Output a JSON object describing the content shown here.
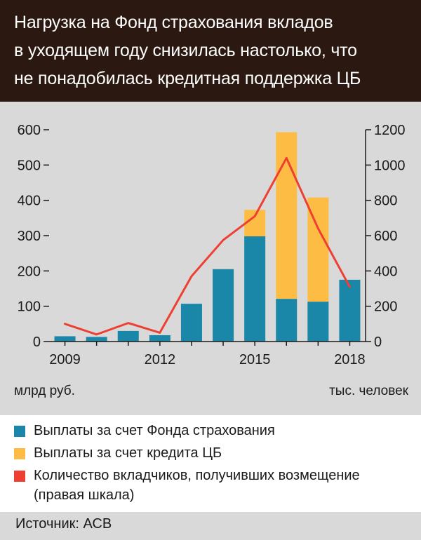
{
  "title": "Нагрузка на Фонд страхования вкладов\nв уходящем году снизилась настолько, что\nне понадобилась кредитная поддержка ЦБ",
  "source": "Источник: АСВ",
  "colors": {
    "header": "#2b1810",
    "fund": "#1a86a8",
    "cb": "#fdbd45",
    "line": "#ee4032",
    "background": "#d9d9d9"
  },
  "legend": [
    {
      "label": "Выплаты за счет Фонда страхования",
      "color": "#1a86a8",
      "shape": "square"
    },
    {
      "label": "Выплаты за счет кредита ЦБ",
      "color": "#fdbd45",
      "shape": "square"
    },
    {
      "label": "Количество вкладчиков, получивших возмещение (правая шкала)",
      "color": "#ee4032",
      "shape": "square"
    }
  ],
  "chart_data": {
    "type": "bar",
    "stacked": true,
    "x": [
      2009,
      2010,
      2011,
      2012,
      2013,
      2014,
      2015,
      2016,
      2017,
      2018
    ],
    "x_tick_labels": [
      "2009",
      "2012",
      "2015",
      "2018"
    ],
    "x_tick_values": [
      2009,
      2012,
      2015,
      2018
    ],
    "series": [
      {
        "name": "Выплаты за счет Фонда страхования",
        "values": [
          15,
          13,
          30,
          18,
          107,
          205,
          298,
          121,
          113,
          175
        ],
        "axis": "left",
        "kind": "bar"
      },
      {
        "name": "Выплаты за счет кредита ЦБ",
        "values": [
          0,
          0,
          0,
          0,
          0,
          0,
          75,
          472,
          295,
          0
        ],
        "axis": "left",
        "kind": "bar"
      },
      {
        "name": "Количество вкладчиков, получивших возмещение (правая шкала)",
        "values": [
          100,
          40,
          105,
          50,
          370,
          575,
          710,
          1040,
          640,
          310
        ],
        "axis": "right",
        "kind": "line"
      }
    ],
    "y_left": {
      "label": "млрд руб.",
      "ylim": [
        0,
        600
      ],
      "ticks": [
        0,
        100,
        200,
        300,
        400,
        500,
        600
      ]
    },
    "y_right": {
      "label": "тыс. человек",
      "ylim": [
        0,
        1200
      ],
      "ticks": [
        0,
        200,
        400,
        600,
        800,
        1000,
        1200
      ]
    },
    "grid": false,
    "legend_position": "bottom"
  }
}
